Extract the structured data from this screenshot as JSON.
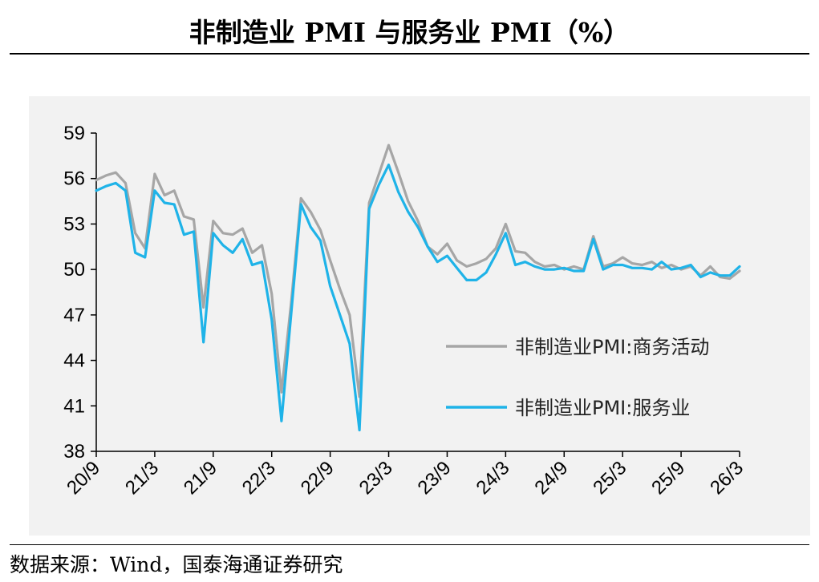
{
  "title": "非制造业 PMI 与服务业 PMI（%）",
  "source": "数据来源：Wind，国泰海通证券研究",
  "colors": {
    "business": "#a6a6a6",
    "services": "#1fb3e8",
    "background": "#f2f2f2"
  },
  "chart_data": {
    "type": "line",
    "title": "非制造业 PMI 与服务业 PMI（%）",
    "ylim": [
      38,
      59
    ],
    "yticks": [
      38,
      41,
      44,
      47,
      50,
      53,
      56,
      59
    ],
    "tick_labels_x": [
      "20/9",
      "21/3",
      "21/9",
      "22/3",
      "22/9",
      "23/3",
      "23/9",
      "24/3",
      "24/9",
      "25/3",
      "25/9",
      "26/3"
    ],
    "tick_index": [
      0,
      6,
      12,
      18,
      24,
      30,
      36,
      42,
      48,
      54,
      60,
      66
    ],
    "legend_position": "right",
    "series": [
      {
        "name": "非制造业PMI:商务活动",
        "color": "#a6a6a6",
        "values": [
          55.9,
          56.2,
          56.4,
          55.7,
          52.4,
          51.4,
          56.3,
          54.9,
          55.2,
          53.5,
          53.3,
          47.5,
          53.2,
          52.4,
          52.3,
          52.7,
          51.1,
          51.6,
          48.4,
          41.9,
          47.8,
          54.7,
          53.8,
          52.6,
          50.6,
          48.7,
          47.0,
          41.6,
          54.4,
          56.3,
          58.2,
          56.4,
          54.5,
          53.2,
          51.5,
          51.0,
          51.7,
          50.6,
          50.2,
          50.4,
          50.7,
          51.4,
          53.0,
          51.2,
          51.1,
          50.5,
          50.2,
          50.3,
          50.0,
          50.2,
          50.0,
          52.2,
          50.2,
          50.4,
          50.8,
          50.4,
          50.3,
          50.5,
          50.1,
          50.3,
          50.0,
          50.2,
          49.6,
          50.2,
          49.5,
          49.4,
          49.9
        ]
      },
      {
        "name": "非制造业PMI:服务业",
        "color": "#1fb3e8",
        "values": [
          55.2,
          55.5,
          55.7,
          55.2,
          51.1,
          50.8,
          55.2,
          54.4,
          54.3,
          52.3,
          52.5,
          45.2,
          52.4,
          51.6,
          51.1,
          52.0,
          50.3,
          50.5,
          46.7,
          40.0,
          47.1,
          54.3,
          52.8,
          51.9,
          48.9,
          47.0,
          45.1,
          39.4,
          54.0,
          55.6,
          56.9,
          55.1,
          53.8,
          52.8,
          51.5,
          50.5,
          50.9,
          50.1,
          49.3,
          49.3,
          49.8,
          51.0,
          52.4,
          50.3,
          50.5,
          50.2,
          50.0,
          50.0,
          50.1,
          49.9,
          49.9,
          52.0,
          50.0,
          50.3,
          50.3,
          50.1,
          50.1,
          50.0,
          50.5,
          50.0,
          50.1,
          50.3,
          49.5,
          49.8,
          49.6,
          49.6,
          50.2
        ]
      }
    ]
  }
}
